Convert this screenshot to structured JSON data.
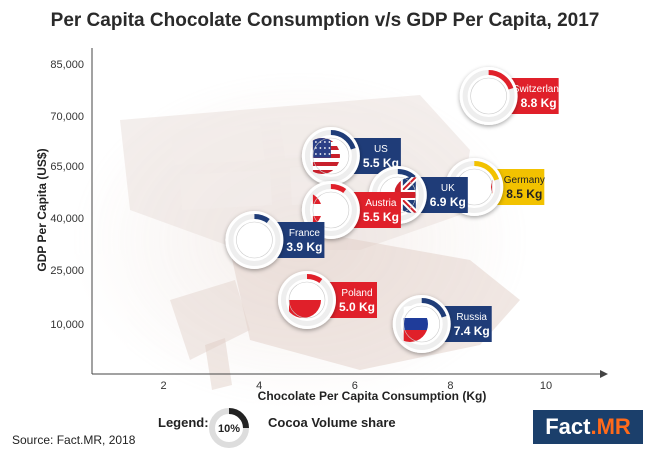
{
  "chart_data": {
    "type": "scatter",
    "title": "Per Capita Chocolate Consumption v/s GDP Per Capita, 2017",
    "xlabel": "Chocolate Per Capita Consumption (Kg)",
    "ylabel": "GDP Per Capita (US$)",
    "xlim": [
      0,
      11
    ],
    "x_ticks": [
      "2",
      "4",
      "6",
      "8",
      "10"
    ],
    "y_ticks": [
      "10,000",
      "25,000",
      "40,000",
      "65,000",
      "70,000",
      "85,000"
    ],
    "points": [
      {
        "country": "Switzerland",
        "x": 8.8,
        "y_label": "between 70,000 and 85,000",
        "label_value": "8.8 Kg",
        "cocoa_share_pct": 20,
        "ring_color": "#e0202a",
        "label_color": "#e0202a",
        "flag": "switzerland"
      },
      {
        "country": "US",
        "x": 5.5,
        "y_label": "about 65,000",
        "label_value": "5.5 Kg",
        "cocoa_share_pct": 20,
        "ring_color": "#1f3c78",
        "label_color": "#1f3c78",
        "flag": "us"
      },
      {
        "country": "Germany",
        "x": 8.5,
        "y_label": "between 40,000 and 65,000",
        "label_value": "8.5 Kg",
        "cocoa_share_pct": 20,
        "ring_color": "#f2c200",
        "label_color": "#f2c200",
        "flag": "germany"
      },
      {
        "country": "UK",
        "x": 6.9,
        "y_label": "between 40,000 and 65,000",
        "label_value": "6.9 Kg",
        "cocoa_share_pct": 12,
        "ring_color": "#1f3c78",
        "label_color": "#1f3c78",
        "flag": "uk"
      },
      {
        "country": "Austria",
        "x": 5.5,
        "y_label": "about 40,000",
        "label_value": "5.5 Kg",
        "cocoa_share_pct": 10,
        "ring_color": "#e0202a",
        "label_color": "#e0202a",
        "flag": "austria"
      },
      {
        "country": "France",
        "x": 3.9,
        "y_label": "between 25,000 and 40,000",
        "label_value": "3.9 Kg",
        "cocoa_share_pct": 10,
        "ring_color": "#1f3c78",
        "label_color": "#1f3c78",
        "flag": "france"
      },
      {
        "country": "Poland",
        "x": 5.0,
        "y_label": "between 10,000 and 25,000",
        "label_value": "5.0 Kg",
        "cocoa_share_pct": 10,
        "ring_color": "#e0202a",
        "label_color": "#e0202a",
        "flag": "poland"
      },
      {
        "country": "Russia",
        "x": 7.4,
        "y_label": "about 10,000",
        "label_value": "7.4 Kg",
        "cocoa_share_pct": 20,
        "ring_color": "#1f3c78",
        "label_color": "#1f3c78",
        "flag": "russia"
      }
    ],
    "legend": {
      "title": "Legend:",
      "sample_value": "10%",
      "text": "Cocoa Volume share"
    },
    "grid": false
  },
  "source": "Source: Fact.MR, 2018",
  "brand": {
    "main": "Fact",
    "accent": ".MR"
  }
}
